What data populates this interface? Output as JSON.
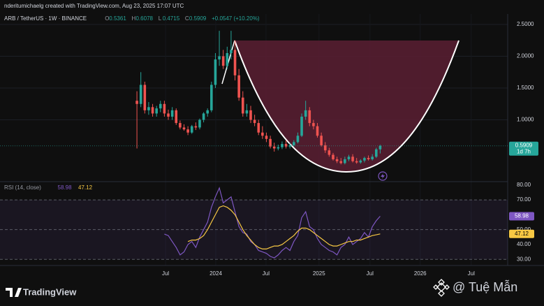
{
  "header": {
    "attribution": "nderitumichaelg created with TradingView.com, Aug 23, 2025 17:07 UTC",
    "symbol": "ARB / TetherUS · 1W · BINANCE",
    "ohlc": [
      {
        "label": "O",
        "value": "0.5361"
      },
      {
        "label": "H",
        "value": "0.6078"
      },
      {
        "label": "L",
        "value": "0.4715"
      },
      {
        "label": "C",
        "value": "0.5909"
      }
    ],
    "change": "+0.0547 (+10.20%)"
  },
  "chart_data": [
    {
      "type": "candlestick",
      "up_color": "#26a69a",
      "down_color": "#ef5350",
      "open": [
        1.3,
        1.25,
        1.55,
        1.15,
        1.2,
        1.1,
        1.18,
        1.25,
        1.1,
        1.05,
        1.15,
        0.95,
        0.88,
        0.85,
        0.8,
        0.9,
        0.88,
        1.0,
        1.1,
        1.15,
        1.55,
        1.95,
        2.0,
        1.85,
        2.05,
        2.1,
        1.7,
        1.35,
        1.1,
        1.15,
        1.0,
        0.95,
        0.8,
        0.75,
        0.7,
        0.58,
        0.55,
        0.57,
        0.62,
        0.58,
        0.6,
        0.65,
        0.75,
        1.05,
        1.15,
        0.95,
        0.9,
        0.75,
        0.6,
        0.52,
        0.45,
        0.38,
        0.35,
        0.32,
        0.38,
        0.42,
        0.35,
        0.33,
        0.36,
        0.4,
        0.38,
        0.42,
        0.5361
      ],
      "high": [
        1.45,
        1.75,
        1.6,
        1.28,
        1.25,
        1.22,
        1.3,
        1.3,
        1.16,
        1.2,
        1.18,
        0.99,
        0.93,
        0.9,
        0.92,
        0.96,
        1.02,
        1.12,
        1.18,
        1.6,
        2.05,
        2.4,
        2.1,
        2.15,
        2.4,
        2.25,
        1.8,
        1.45,
        1.25,
        1.22,
        1.08,
        1.0,
        0.9,
        0.8,
        0.75,
        0.64,
        0.61,
        0.66,
        0.68,
        0.64,
        0.68,
        0.8,
        1.1,
        1.3,
        1.2,
        1.0,
        0.95,
        0.8,
        0.65,
        0.56,
        0.48,
        0.42,
        0.4,
        0.42,
        0.45,
        0.46,
        0.4,
        0.38,
        0.42,
        0.44,
        0.46,
        0.56,
        0.6078
      ],
      "low": [
        0.55,
        1.2,
        1.1,
        1.08,
        1.05,
        1.05,
        1.12,
        1.05,
        1.0,
        1.0,
        0.92,
        0.85,
        0.83,
        0.76,
        0.78,
        0.84,
        0.85,
        0.96,
        1.05,
        1.12,
        1.5,
        1.85,
        1.8,
        1.8,
        1.95,
        1.62,
        1.3,
        1.05,
        1.05,
        0.95,
        0.9,
        0.76,
        0.7,
        0.65,
        0.55,
        0.5,
        0.52,
        0.54,
        0.55,
        0.55,
        0.58,
        0.63,
        0.73,
        1.0,
        0.9,
        0.85,
        0.72,
        0.58,
        0.48,
        0.42,
        0.36,
        0.32,
        0.3,
        0.3,
        0.35,
        0.33,
        0.31,
        0.31,
        0.33,
        0.36,
        0.36,
        0.4,
        0.4715
      ],
      "close": [
        1.25,
        1.55,
        1.15,
        1.2,
        1.1,
        1.18,
        1.25,
        1.1,
        1.05,
        1.15,
        0.95,
        0.88,
        0.85,
        0.8,
        0.9,
        0.88,
        1.0,
        1.1,
        1.15,
        1.55,
        1.95,
        2.0,
        1.85,
        2.05,
        2.1,
        1.7,
        1.35,
        1.1,
        1.15,
        1.0,
        0.95,
        0.8,
        0.75,
        0.7,
        0.58,
        0.55,
        0.57,
        0.62,
        0.58,
        0.6,
        0.65,
        0.75,
        1.05,
        1.15,
        0.95,
        0.9,
        0.75,
        0.6,
        0.52,
        0.45,
        0.38,
        0.35,
        0.32,
        0.38,
        0.42,
        0.35,
        0.33,
        0.36,
        0.4,
        0.38,
        0.42,
        0.5361,
        0.5909
      ],
      "xlim": [
        -34.9,
        94.5
      ],
      "ylim": [
        0.05,
        2.665
      ],
      "yticks": [
        {
          "value": 1,
          "label": "1.0000"
        },
        {
          "value": 1.5,
          "label": "1.5000"
        },
        {
          "value": 2,
          "label": "2.0000"
        },
        {
          "value": 2.5,
          "label": "2.5000"
        }
      ],
      "grid": true,
      "last_price": {
        "value": 0.5909,
        "label": "0.5909"
      },
      "countdown": "1d 7h"
    },
    {
      "type": "line",
      "title": "RSI (14, close)",
      "series": [
        {
          "color": "#7e57c2",
          "value_label": "58.98",
          "values": [
            null,
            null,
            null,
            null,
            null,
            null,
            null,
            47,
            46,
            42,
            38,
            33,
            35,
            40,
            42,
            38,
            45,
            50,
            55,
            65,
            72,
            78,
            68,
            70,
            72,
            62,
            52,
            48,
            47,
            42,
            40,
            36,
            35,
            34,
            32,
            31,
            33,
            36,
            38,
            36,
            42,
            46,
            58,
            62,
            52,
            50,
            44,
            40,
            38,
            36,
            35,
            33,
            38,
            40,
            45,
            40,
            42,
            44,
            48,
            45,
            52,
            56,
            58.98
          ]
        },
        {
          "color": "#f7c843",
          "value_label": "47.12",
          "values": [
            null,
            null,
            null,
            null,
            null,
            null,
            null,
            null,
            null,
            null,
            null,
            null,
            null,
            42,
            43,
            43,
            44,
            46,
            50,
            55,
            60,
            65,
            66,
            65,
            63,
            60,
            55,
            50,
            46,
            43,
            40,
            38,
            37,
            37,
            38,
            39,
            39,
            40,
            42,
            44,
            46,
            49,
            51,
            51,
            50,
            48,
            46,
            44,
            42,
            40,
            39,
            39,
            40,
            41,
            42,
            42,
            43,
            43,
            44,
            45,
            46,
            46.5,
            47.12
          ]
        }
      ],
      "levels": [
        70,
        50,
        30
      ],
      "band_color": "#7e57c2",
      "xlim": [
        -34.9,
        94.5
      ],
      "ylim": [
        25.9,
        81.3
      ],
      "xticks": [
        {
          "value": 7.3,
          "label": "Jul"
        },
        {
          "value": 20.1,
          "label": "2024"
        },
        {
          "value": 32.9,
          "label": "Jul"
        },
        {
          "value": 46.4,
          "label": "2025"
        },
        {
          "value": 59.4,
          "label": "Jul"
        },
        {
          "value": 72.2,
          "label": "2026"
        },
        {
          "value": 85.2,
          "label": "Jul"
        }
      ],
      "yticks": [
        {
          "value": 30,
          "label": "30.00"
        },
        {
          "value": 40,
          "label": "40.00"
        },
        {
          "value": 50,
          "label": "50.00"
        },
        {
          "value": 70,
          "label": "70.00"
        },
        {
          "value": 80,
          "label": "80.00"
        }
      ]
    }
  ],
  "footer": {
    "brand": "TradingView",
    "watermark": "@ Tuệ Mẫn"
  }
}
